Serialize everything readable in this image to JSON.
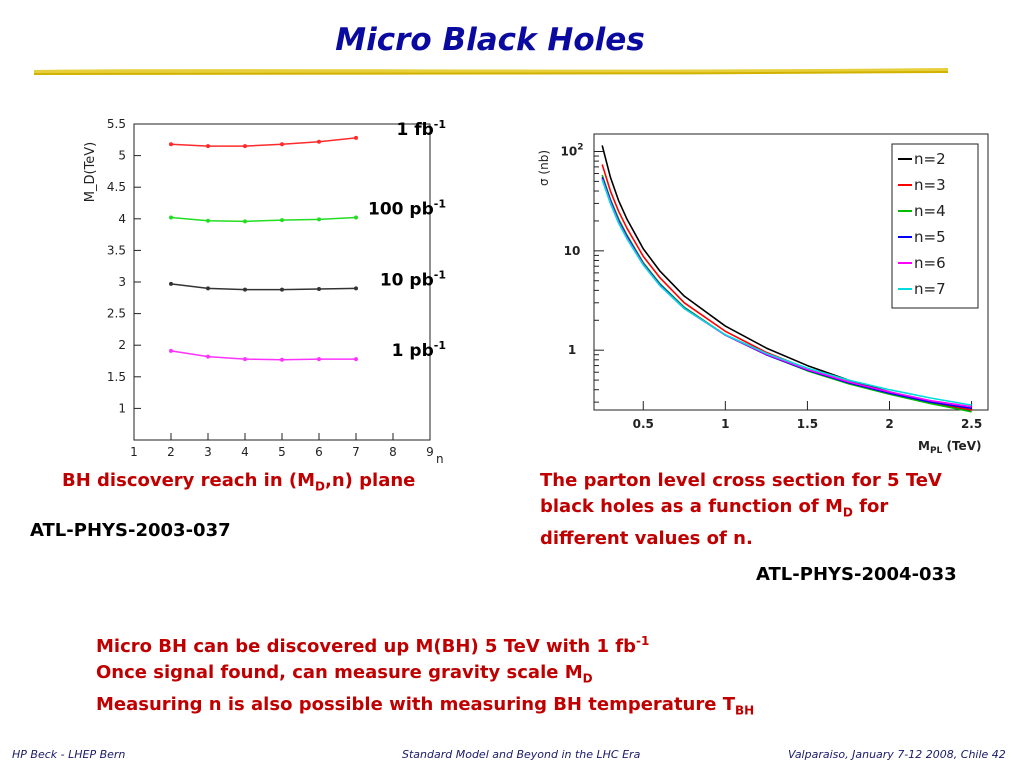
{
  "slide": {
    "title": "Micro Black Holes",
    "left_caption": {
      "text": "BH discovery reach in (M",
      "sub": "D",
      "rest": ",n) plane"
    },
    "left_ref": "ATL-PHYS-2003-037",
    "right_caption": {
      "line1": "The parton level cross section for 5 TeV",
      "line2": "black holes as a function of M",
      "line2_sub": "D",
      "line2_rest": " for",
      "line3": "different values of n."
    },
    "right_ref": "ATL-PHYS-2004-033",
    "bullets": {
      "b1": "Micro BH can be discovered up M(BH) 5 TeV with 1 fb",
      "b1_sup": "-1",
      "b2": "Once signal found, can measure gravity scale M",
      "b2_sub": "D",
      "b3": "Measuring n is also possible with measuring BH temperature T",
      "b3_sub": "BH"
    },
    "footer": {
      "left": "HP Beck - LHEP Bern",
      "center": "Standard Model and Beyond in the LHC Era",
      "right": "Valparaiso, January 7-12 2008, Chile  42"
    }
  },
  "chart_data": [
    {
      "type": "line",
      "xlabel": "n",
      "ylabel": "M_D(TeV)",
      "xlim": [
        1,
        9
      ],
      "ylim": [
        0.5,
        5.5
      ],
      "x_ticks": [
        1,
        2,
        3,
        4,
        5,
        6,
        7,
        8,
        9
      ],
      "y_ticks": [
        1,
        1.5,
        2,
        2.5,
        3,
        3.5,
        4,
        4.5,
        5,
        5.5
      ],
      "x": [
        2,
        3,
        4,
        5,
        6,
        7
      ],
      "series": [
        {
          "name": "1 fb-1",
          "label_main": "1 fb",
          "label_sup": "-1",
          "color": "#ff2a2a",
          "values": [
            5.18,
            5.15,
            5.15,
            5.18,
            5.22,
            5.28
          ]
        },
        {
          "name": "100 pb-1",
          "label_main": "100 pb",
          "label_sup": "-1",
          "color": "#22dd22",
          "values": [
            4.02,
            3.97,
            3.96,
            3.98,
            3.99,
            4.02
          ]
        },
        {
          "name": "10 pb-1",
          "label_main": "10 pb",
          "label_sup": "-1",
          "color": "#333333",
          "values": [
            2.97,
            2.9,
            2.88,
            2.88,
            2.89,
            2.9
          ]
        },
        {
          "name": "1 pb-1",
          "label_main": "1 pb",
          "label_sup": "-1",
          "color": "#ff33ff",
          "values": [
            1.91,
            1.82,
            1.78,
            1.77,
            1.78,
            1.78
          ]
        }
      ],
      "grid": false
    },
    {
      "type": "line",
      "xlabel_main": "M",
      "xlabel_sub": "PL",
      "xlabel_rest": " (TeV)",
      "ylabel": "σ (nb)",
      "y_scale": "log",
      "xlim": [
        0.2,
        2.6
      ],
      "ylim": [
        0.25,
        150
      ],
      "x_ticks": [
        0.5,
        1,
        1.5,
        2,
        2.5
      ],
      "y_ticks": [
        {
          "v": 100,
          "main": "10",
          "sup": "2"
        },
        {
          "v": 10,
          "main": "10",
          "sup": ""
        },
        {
          "v": 1,
          "main": "1",
          "sup": ""
        }
      ],
      "x": [
        0.25,
        0.3,
        0.35,
        0.4,
        0.5,
        0.6,
        0.75,
        1.0,
        1.25,
        1.5,
        1.75,
        2.0,
        2.25,
        2.5
      ],
      "series": [
        {
          "name": "n=2",
          "color": "#000000",
          "values": [
            115,
            55,
            32,
            21,
            10.5,
            6.3,
            3.5,
            1.75,
            1.05,
            0.7,
            0.5,
            0.38,
            0.3,
            0.24
          ]
        },
        {
          "name": "n=3",
          "color": "#ff0000",
          "values": [
            74,
            40,
            25,
            17,
            8.8,
            5.4,
            3.0,
            1.55,
            0.95,
            0.65,
            0.48,
            0.37,
            0.3,
            0.25
          ]
        },
        {
          "name": "n=4",
          "color": "#00bb00",
          "values": [
            58,
            33,
            21,
            14.5,
            7.6,
            4.7,
            2.7,
            1.42,
            0.9,
            0.62,
            0.46,
            0.36,
            0.29,
            0.24
          ]
        },
        {
          "name": "n=5",
          "color": "#0000ff",
          "values": [
            55,
            32,
            20,
            14,
            7.4,
            4.6,
            2.65,
            1.42,
            0.9,
            0.63,
            0.47,
            0.37,
            0.3,
            0.26
          ]
        },
        {
          "name": "n=6",
          "color": "#ff00ff",
          "values": [
            53,
            31,
            19.5,
            13.6,
            7.3,
            4.5,
            2.62,
            1.42,
            0.91,
            0.64,
            0.48,
            0.38,
            0.31,
            0.27
          ]
        },
        {
          "name": "n=7",
          "color": "#00dddd",
          "values": [
            52,
            30,
            19,
            13.3,
            7.2,
            4.5,
            2.62,
            1.43,
            0.93,
            0.66,
            0.5,
            0.4,
            0.33,
            0.28
          ]
        }
      ],
      "legend_placement": "top-right",
      "grid": false
    }
  ]
}
